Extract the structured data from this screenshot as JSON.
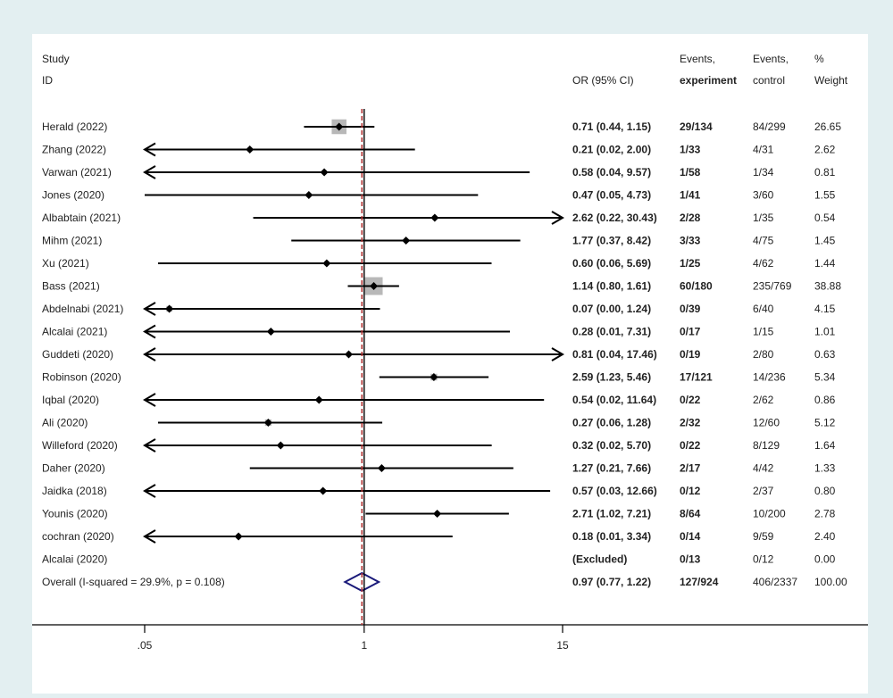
{
  "chart_data": {
    "type": "forest",
    "x_scale": "log",
    "x_ticks": [
      ".05",
      "1",
      "15"
    ],
    "reference_line": 1,
    "pooled_line": 0.97,
    "headers": {
      "study_line1": "Study",
      "study_line2": "ID",
      "or": "OR (95% CI)",
      "events_exp_line1": "Events,",
      "events_exp_line2": "experiment",
      "events_ctl_line1": "Events,",
      "events_ctl_line2": "control",
      "weight_line1": "%",
      "weight_line2": "Weight"
    },
    "studies": [
      {
        "label": "Herald  (2022)",
        "or": 0.71,
        "lo": 0.44,
        "hi": 1.15,
        "ci_text": "0.71 (0.44, 1.15)",
        "events_exp": "29/134",
        "events_ctl": "84/299",
        "weight": "26.65",
        "w": 26.65
      },
      {
        "label": "Zhang (2022)",
        "or": 0.21,
        "lo": 0.02,
        "hi": 2.0,
        "ci_text": "0.21 (0.02, 2.00)",
        "events_exp": "1/33",
        "events_ctl": "4/31",
        "weight": "2.62",
        "w": 2.62
      },
      {
        "label": "Varwan (2021)",
        "or": 0.58,
        "lo": 0.04,
        "hi": 9.57,
        "ci_text": "0.58 (0.04, 9.57)",
        "events_exp": "1/58",
        "events_ctl": "1/34",
        "weight": "0.81",
        "w": 0.81
      },
      {
        "label": "Jones (2020)",
        "or": 0.47,
        "lo": 0.05,
        "hi": 4.73,
        "ci_text": "0.47 (0.05, 4.73)",
        "events_exp": "1/41",
        "events_ctl": "3/60",
        "weight": "1.55",
        "w": 1.55
      },
      {
        "label": "Albabtain   (2021)",
        "or": 2.62,
        "lo": 0.22,
        "hi": 30.43,
        "ci_text": "2.62 (0.22, 30.43)",
        "events_exp": "2/28",
        "events_ctl": "1/35",
        "weight": "0.54",
        "w": 0.54
      },
      {
        "label": "Mihm (2021)",
        "or": 1.77,
        "lo": 0.37,
        "hi": 8.42,
        "ci_text": "1.77 (0.37, 8.42)",
        "events_exp": "3/33",
        "events_ctl": "4/75",
        "weight": "1.45",
        "w": 1.45
      },
      {
        "label": "Xu (2021)",
        "or": 0.6,
        "lo": 0.06,
        "hi": 5.69,
        "ci_text": "0.60 (0.06, 5.69)",
        "events_exp": "1/25",
        "events_ctl": "4/62",
        "weight": "1.44",
        "w": 1.44
      },
      {
        "label": "Bass  (2021)",
        "or": 1.14,
        "lo": 0.8,
        "hi": 1.61,
        "ci_text": "1.14 (0.80, 1.61)",
        "events_exp": "60/180",
        "events_ctl": "235/769",
        "weight": "38.88",
        "w": 38.88
      },
      {
        "label": "Abdelnabi (2021)",
        "or": 0.07,
        "lo": 0.0,
        "hi": 1.24,
        "ci_text": "0.07 (0.00, 1.24)",
        "events_exp": "0/39",
        "events_ctl": "6/40",
        "weight": "4.15",
        "w": 4.15
      },
      {
        "label": "Alcalai (2021)",
        "or": 0.28,
        "lo": 0.01,
        "hi": 7.31,
        "ci_text": "0.28 (0.01, 7.31)",
        "events_exp": "0/17",
        "events_ctl": "1/15",
        "weight": "1.01",
        "w": 1.01
      },
      {
        "label": "Guddeti (2020)",
        "or": 0.81,
        "lo": 0.04,
        "hi": 17.46,
        "ci_text": "0.81 (0.04, 17.46)",
        "events_exp": "0/19",
        "events_ctl": "2/80",
        "weight": "0.63",
        "w": 0.63
      },
      {
        "label": "Robinson (2020)",
        "or": 2.59,
        "lo": 1.23,
        "hi": 5.46,
        "ci_text": "2.59 (1.23, 5.46)",
        "events_exp": "17/121",
        "events_ctl": "14/236",
        "weight": "5.34",
        "w": 5.34
      },
      {
        "label": "Iqbal (2020)",
        "or": 0.54,
        "lo": 0.02,
        "hi": 11.64,
        "ci_text": "0.54 (0.02, 11.64)",
        "events_exp": "0/22",
        "events_ctl": "2/62",
        "weight": "0.86",
        "w": 0.86
      },
      {
        "label": "Ali (2020)",
        "or": 0.27,
        "lo": 0.06,
        "hi": 1.28,
        "ci_text": "0.27 (0.06, 1.28)",
        "events_exp": "2/32",
        "events_ctl": "12/60",
        "weight": "5.12",
        "w": 5.12
      },
      {
        "label": "Willeford (2020)",
        "or": 0.32,
        "lo": 0.02,
        "hi": 5.7,
        "ci_text": "0.32 (0.02, 5.70)",
        "events_exp": "0/22",
        "events_ctl": "8/129",
        "weight": "1.64",
        "w": 1.64
      },
      {
        "label": "Daher (2020)",
        "or": 1.27,
        "lo": 0.21,
        "hi": 7.66,
        "ci_text": "1.27 (0.21, 7.66)",
        "events_exp": "2/17",
        "events_ctl": "4/42",
        "weight": "1.33",
        "w": 1.33
      },
      {
        "label": "Jaidka (2018)",
        "or": 0.57,
        "lo": 0.03,
        "hi": 12.66,
        "ci_text": "0.57 (0.03, 12.66)",
        "events_exp": "0/12",
        "events_ctl": "2/37",
        "weight": "0.80",
        "w": 0.8
      },
      {
        "label": "Younis (2020)",
        "or": 2.71,
        "lo": 1.02,
        "hi": 7.21,
        "ci_text": "2.71 (1.02, 7.21)",
        "events_exp": "8/64",
        "events_ctl": "10/200",
        "weight": "2.78",
        "w": 2.78
      },
      {
        "label": "cochran (2020)",
        "or": 0.18,
        "lo": 0.01,
        "hi": 3.34,
        "ci_text": "0.18 (0.01, 3.34)",
        "events_exp": "0/14",
        "events_ctl": "9/59",
        "weight": "2.40",
        "w": 2.4
      },
      {
        "label": "Alcalai (2020)",
        "or": null,
        "lo": null,
        "hi": null,
        "ci_text": "(Excluded)",
        "events_exp": "0/13",
        "events_ctl": "0/12",
        "weight": "0.00",
        "w": 0
      }
    ],
    "overall": {
      "label": "Overall  (I-squared = 29.9%, p = 0.108)",
      "or": 0.97,
      "lo": 0.77,
      "hi": 1.22,
      "ci_text": "0.97 (0.77, 1.22)",
      "events_exp": "127/924",
      "events_ctl": "406/2337",
      "weight": "100.00"
    }
  }
}
